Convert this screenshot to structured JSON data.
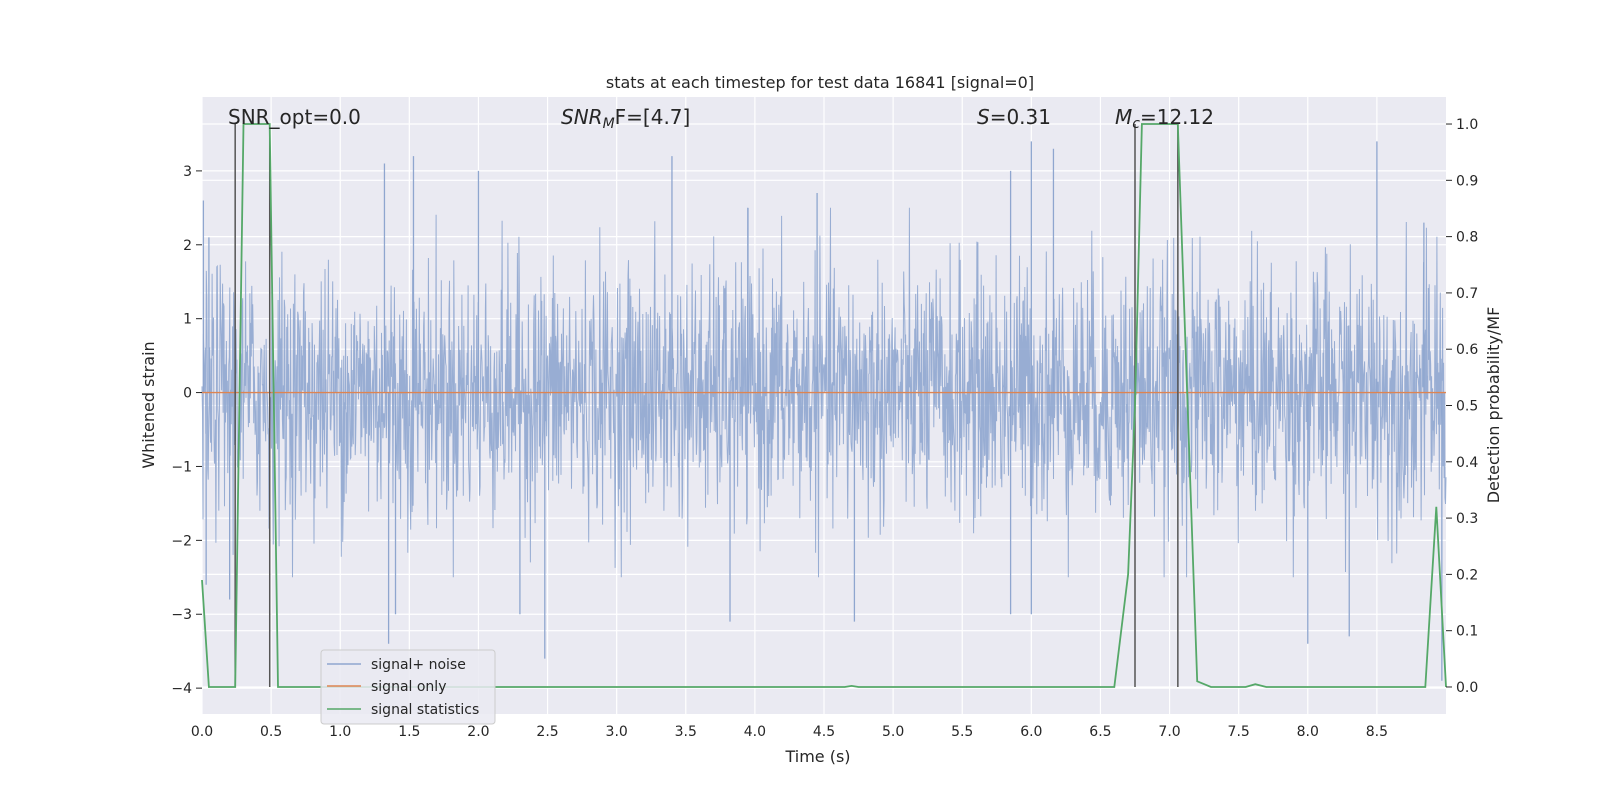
{
  "chart_data": {
    "type": "line",
    "title": "stats at each timestep for test data 16841 [signal=0]",
    "xlabel": "Time (s)",
    "ylabel": "Whitened strain",
    "y2label": "Detection probability/MF",
    "xlim": [
      0.0,
      9.0
    ],
    "ylim": [
      -4.35,
      4.0
    ],
    "y2lim": [
      -0.048,
      1.048
    ],
    "x_ticks": [
      0.0,
      0.5,
      1.0,
      1.5,
      2.0,
      2.5,
      3.0,
      3.5,
      4.0,
      4.5,
      5.0,
      5.5,
      6.0,
      6.5,
      7.0,
      7.5,
      8.0,
      8.5
    ],
    "x_tick_labels": [
      "0.0",
      "0.5",
      "1.0",
      "1.5",
      "2.0",
      "2.5",
      "3.0",
      "3.5",
      "4.0",
      "4.5",
      "5.0",
      "5.5",
      "6.0",
      "6.5",
      "7.0",
      "7.5",
      "8.0",
      "8.5"
    ],
    "y_ticks": [
      3,
      2,
      1,
      0,
      -1,
      -2,
      -3,
      -4
    ],
    "y_tick_labels": [
      "3",
      "2",
      "1",
      "0",
      "−1",
      "−2",
      "−3",
      "−4"
    ],
    "y2_ticks": [
      1.0,
      0.9,
      0.8,
      0.7,
      0.6,
      0.5,
      0.4,
      0.3,
      0.2,
      0.1,
      0.0
    ],
    "y2_tick_labels": [
      "1.0",
      "0.9",
      "0.8",
      "0.7",
      "0.6",
      "0.5",
      "0.4",
      "0.3",
      "0.2",
      "0.1",
      "0.0"
    ],
    "annotations": {
      "snr_opt": "SNR_opt=0.0",
      "snr_mf_prefix": "SNR",
      "snr_mf_sub": "M",
      "snr_mf_rest": "F=[4.7]",
      "s_prefix": "S",
      "s_rest": "=0.31",
      "mc_prefix": "M",
      "mc_sub": "c",
      "mc_rest": "=12.12"
    },
    "vertical_markers": [
      0.24,
      0.49,
      6.75,
      7.06
    ],
    "series": [
      {
        "name": "signal+ noise",
        "color": "#8fa6cf",
        "description": "dense whitened noise, sample rate dense, amplitude envelope about ±2.5 with peaks to 3.6 and troughs to −3.6",
        "envelope_hi": 2.5,
        "envelope_lo": -2.5,
        "peaks": [
          [
            0.01,
            2.6
          ],
          [
            0.05,
            2.1
          ],
          [
            1.32,
            3.1
          ],
          [
            1.53,
            3.2
          ],
          [
            2.0,
            3.0
          ],
          [
            3.4,
            3.2
          ],
          [
            3.95,
            2.5
          ],
          [
            4.45,
            2.7
          ],
          [
            5.85,
            3.0
          ],
          [
            6.0,
            3.4
          ],
          [
            6.16,
            3.3
          ],
          [
            8.5,
            3.4
          ],
          [
            8.84,
            2.3
          ]
        ],
        "troughs": [
          [
            0.03,
            -2.6
          ],
          [
            0.2,
            -2.8
          ],
          [
            1.35,
            -3.4
          ],
          [
            1.4,
            -3.0
          ],
          [
            2.3,
            -3.0
          ],
          [
            2.48,
            -3.6
          ],
          [
            3.82,
            -3.1
          ],
          [
            4.72,
            -3.1
          ],
          [
            5.85,
            -3.0
          ],
          [
            6.0,
            -3.0
          ],
          [
            8.0,
            -3.4
          ],
          [
            8.3,
            -3.3
          ],
          [
            8.97,
            -3.9
          ]
        ]
      },
      {
        "name": "signal only",
        "color": "#dd8452",
        "x": [
          0.0,
          9.0
        ],
        "y": [
          0.0,
          0.0
        ]
      },
      {
        "name": "signal statistics",
        "color": "#55a868",
        "axis": "right",
        "x": [
          0.0,
          0.05,
          0.24,
          0.3,
          0.49,
          0.55,
          1.0,
          4.65,
          4.7,
          4.75,
          6.6,
          6.7,
          6.75,
          6.8,
          7.06,
          7.2,
          7.3,
          7.55,
          7.62,
          7.7,
          8.85,
          8.93,
          9.0
        ],
        "y": [
          0.19,
          0.0,
          0.0,
          1.0,
          1.0,
          0.0,
          0.0,
          0.0,
          0.002,
          0.0,
          0.0,
          0.2,
          0.5,
          1.0,
          1.0,
          0.01,
          0.0,
          0.0,
          0.005,
          0.0,
          0.0,
          0.32,
          0.0
        ]
      }
    ],
    "legend": {
      "position": "lower-left",
      "entries": [
        {
          "label": "signal+ noise",
          "color": "#8fa6cf"
        },
        {
          "label": "signal only",
          "color": "#dd8452"
        },
        {
          "label": "signal statistics",
          "color": "#55a868"
        }
      ]
    },
    "grid": true,
    "background": "#eaeaf2"
  }
}
